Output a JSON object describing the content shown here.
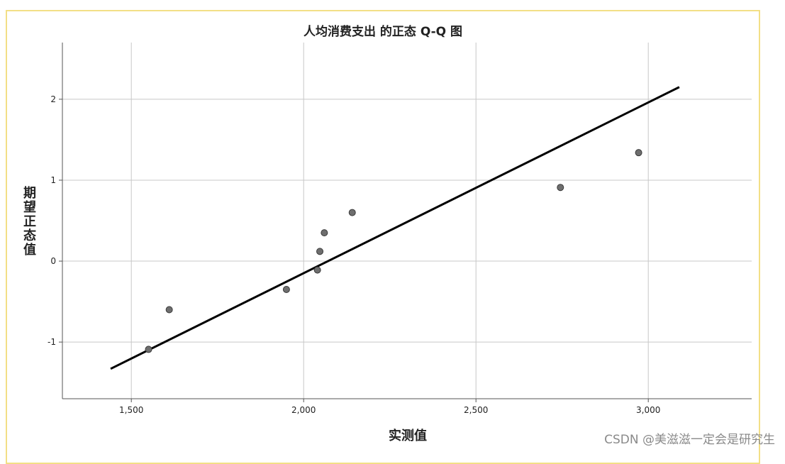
{
  "chart_data": {
    "type": "scatter",
    "title": "人均消费支出 的正态 Q-Q 图",
    "xlabel": "实测值",
    "ylabel": "期望正态值",
    "xlim": [
      1300,
      3300
    ],
    "ylim": [
      -1.7,
      2.7
    ],
    "x_ticks": [
      1500,
      2000,
      2500,
      3000
    ],
    "x_tick_labels": [
      "1,500",
      "2,000",
      "2,500",
      "3,000"
    ],
    "y_ticks": [
      -1,
      0,
      1,
      2
    ],
    "y_tick_labels": [
      "-1",
      "0",
      "1",
      "2"
    ],
    "grid": true,
    "points": [
      {
        "x": 1550,
        "y": -1.09
      },
      {
        "x": 1610,
        "y": -0.6
      },
      {
        "x": 1950,
        "y": -0.35
      },
      {
        "x": 2040,
        "y": -0.11
      },
      {
        "x": 2047,
        "y": 0.12
      },
      {
        "x": 2060,
        "y": 0.35
      },
      {
        "x": 2141,
        "y": 0.6
      },
      {
        "x": 2745,
        "y": 0.91
      },
      {
        "x": 2972,
        "y": 1.34
      }
    ],
    "reference_line": {
      "x": [
        1440,
        3090
      ],
      "y": [
        -1.33,
        2.15
      ]
    },
    "colors": {
      "point_fill": "#6e6e6e",
      "point_stroke": "#3a3a3a",
      "line": "#000000",
      "grid": "#c8c8c8",
      "frame": "#f3df86"
    }
  },
  "watermark": "CSDN @美滋滋一定会是研究生"
}
